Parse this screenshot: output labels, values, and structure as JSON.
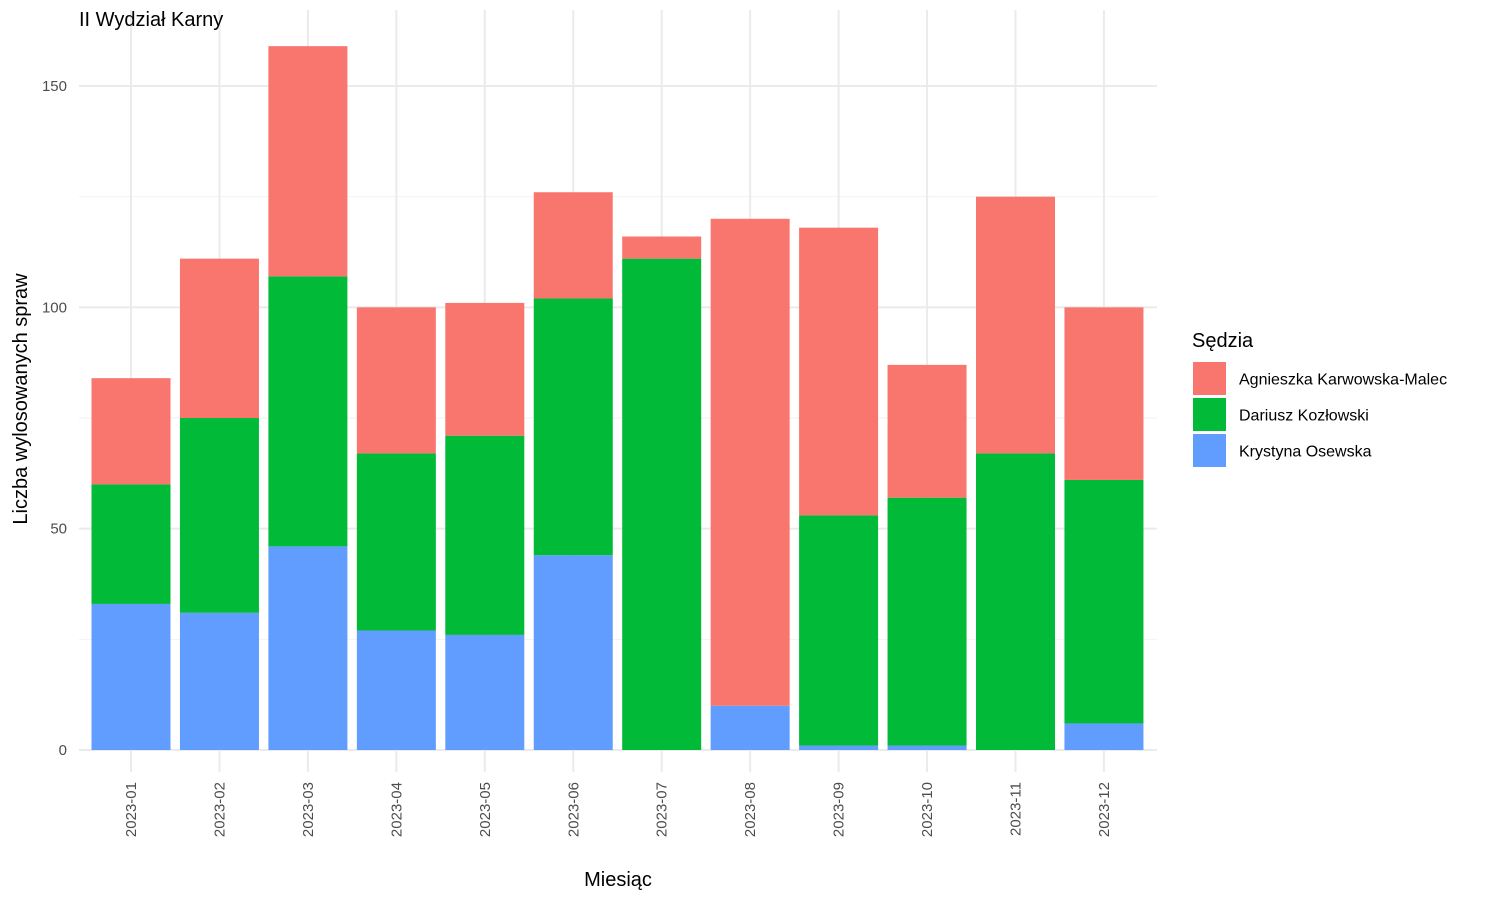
{
  "chart_data": {
    "type": "bar",
    "stacked": true,
    "title": "II Wydział Karny",
    "xlabel": "Miesiąc",
    "ylabel": "Liczba wylosowanych spraw",
    "ylim": [
      0,
      160
    ],
    "yticks": [
      0,
      50,
      100,
      150
    ],
    "grid": true,
    "legend": {
      "title": "Sędzia",
      "position": "right"
    },
    "categories": [
      "2023-01",
      "2023-02",
      "2023-03",
      "2023-04",
      "2023-05",
      "2023-06",
      "2023-07",
      "2023-08",
      "2023-09",
      "2023-10",
      "2023-11",
      "2023-12"
    ],
    "series": [
      {
        "name": "Agnieszka Karwowska-Malec",
        "color": "#F8766D",
        "values": [
          24,
          36,
          52,
          33,
          30,
          24,
          5,
          110,
          65,
          30,
          58,
          39
        ]
      },
      {
        "name": "Dariusz Kozłowski",
        "color": "#00BA38",
        "values": [
          27,
          44,
          61,
          40,
          45,
          58,
          111,
          0,
          52,
          56,
          67,
          55
        ]
      },
      {
        "name": "Krystyna Osewska",
        "color": "#619CFF",
        "values": [
          33,
          31,
          46,
          27,
          26,
          44,
          0,
          10,
          1,
          1,
          0,
          6
        ]
      }
    ],
    "stack_order_bottom_to_top": [
      "Krystyna Osewska",
      "Dariusz Kozłowski",
      "Agnieszka Karwowska-Malec"
    ]
  }
}
